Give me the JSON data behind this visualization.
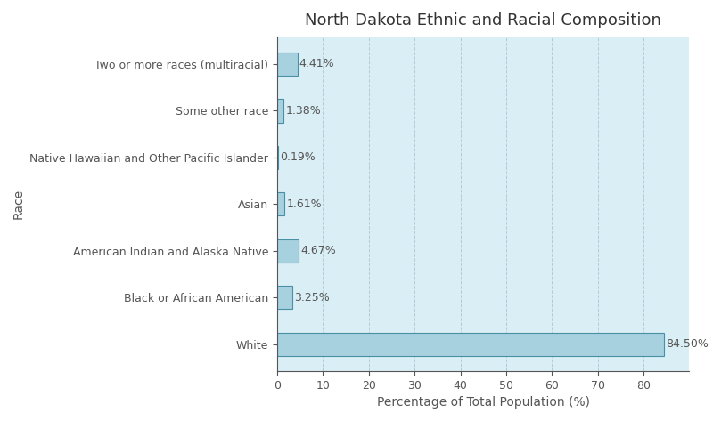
{
  "title": "North Dakota Ethnic and Racial Composition",
  "xlabel": "Percentage of Total Population (%)",
  "ylabel": "Race",
  "categories": [
    "White",
    "Black or African American",
    "American Indian and Alaska Native",
    "Asian",
    "Native Hawaiian and Other Pacific Islander",
    "Some other race",
    "Two or more races (multiracial)"
  ],
  "values": [
    84.5,
    3.25,
    4.67,
    1.61,
    0.19,
    1.38,
    4.41
  ],
  "bar_color": "#a8d1e0",
  "bar_edge_color": "#4a90a4",
  "label_color": "#555555",
  "background_color": "#ffffff",
  "plot_bg_color": "#daeef5",
  "grid_color": "#b0cdd8",
  "xlim": [
    0,
    90
  ],
  "xticks": [
    0,
    10,
    20,
    30,
    40,
    50,
    60,
    70,
    80
  ],
  "title_fontsize": 13,
  "label_fontsize": 10,
  "tick_fontsize": 9,
  "annotation_fontsize": 9
}
